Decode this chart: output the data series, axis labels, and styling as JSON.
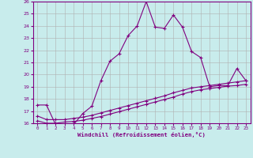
{
  "xlabel": "Windchill (Refroidissement éolien,°C)",
  "background_color": "#c8ecec",
  "line_color": "#800080",
  "grid_color": "#b0b0b0",
  "xlim": [
    -0.5,
    23.5
  ],
  "ylim": [
    16,
    26
  ],
  "yticks": [
    16,
    17,
    18,
    19,
    20,
    21,
    22,
    23,
    24,
    25,
    26
  ],
  "xticks": [
    0,
    1,
    2,
    3,
    4,
    5,
    6,
    7,
    8,
    9,
    10,
    11,
    12,
    13,
    14,
    15,
    16,
    17,
    18,
    19,
    20,
    21,
    22,
    23
  ],
  "series1_x": [
    0,
    1,
    2,
    3,
    4,
    5,
    6,
    7,
    8,
    9,
    10,
    11,
    12,
    13,
    14,
    15,
    16,
    17,
    18,
    19,
    20,
    21,
    22,
    23
  ],
  "series1_y": [
    17.5,
    17.5,
    15.9,
    15.8,
    15.9,
    16.8,
    17.4,
    19.5,
    21.1,
    21.7,
    23.2,
    24.0,
    26.0,
    23.9,
    23.8,
    24.9,
    23.9,
    21.9,
    21.4,
    19.0,
    19.1,
    19.1,
    20.5,
    19.5
  ],
  "series2_x": [
    0,
    1,
    2,
    3,
    4,
    5,
    6,
    7,
    8,
    9,
    10,
    11,
    12,
    13,
    14,
    15,
    16,
    17,
    18,
    19,
    20,
    21,
    22,
    23
  ],
  "series2_y": [
    16.2,
    16.0,
    16.0,
    16.1,
    16.15,
    16.25,
    16.4,
    16.55,
    16.75,
    16.95,
    17.15,
    17.35,
    17.55,
    17.75,
    17.95,
    18.15,
    18.4,
    18.6,
    18.75,
    18.85,
    18.95,
    19.05,
    19.1,
    19.2
  ],
  "series3_x": [
    0,
    1,
    2,
    3,
    4,
    5,
    6,
    7,
    8,
    9,
    10,
    11,
    12,
    13,
    14,
    15,
    16,
    17,
    18,
    19,
    20,
    21,
    22,
    23
  ],
  "series3_y": [
    16.6,
    16.3,
    16.3,
    16.3,
    16.4,
    16.5,
    16.65,
    16.85,
    17.05,
    17.25,
    17.45,
    17.65,
    17.85,
    18.05,
    18.25,
    18.5,
    18.7,
    18.9,
    19.0,
    19.1,
    19.2,
    19.3,
    19.4,
    19.5
  ]
}
